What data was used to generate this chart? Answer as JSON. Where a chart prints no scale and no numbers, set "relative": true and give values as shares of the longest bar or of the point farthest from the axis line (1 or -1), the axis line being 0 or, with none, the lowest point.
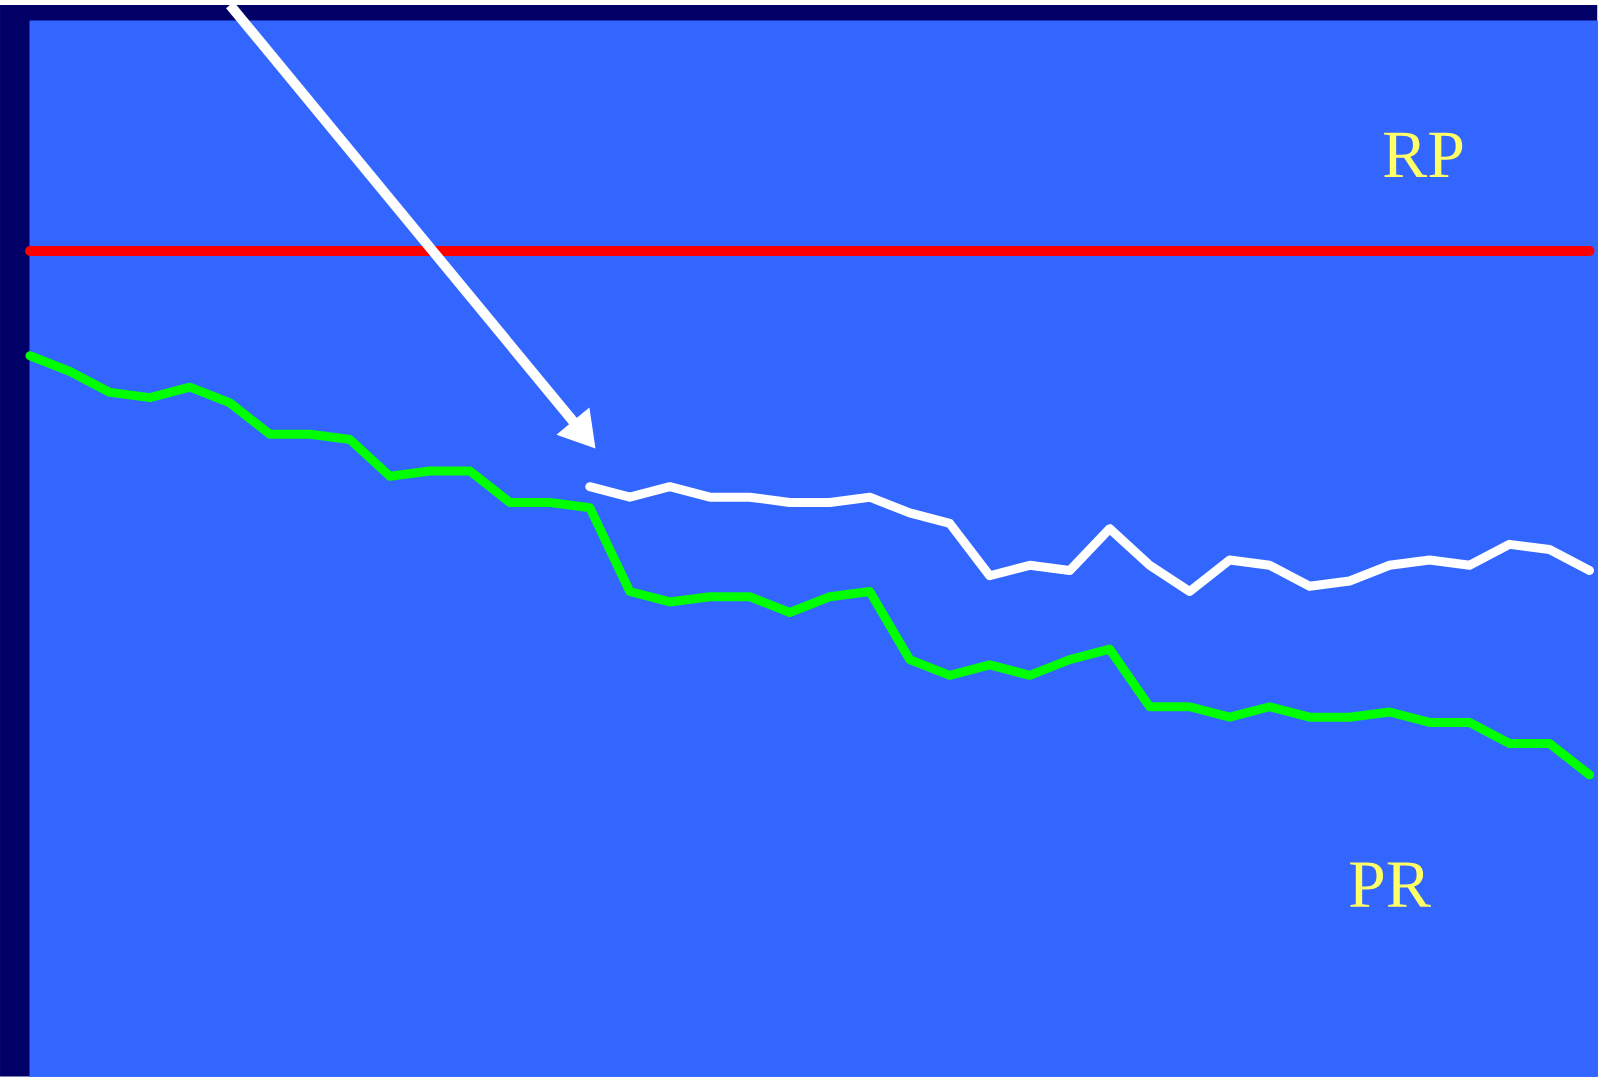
{
  "chart_data": {
    "type": "line",
    "relative": true,
    "categories": [
      null,
      null,
      null,
      null,
      null,
      null,
      null,
      null,
      null,
      null,
      null,
      null,
      null,
      null,
      null,
      null,
      null,
      null,
      null,
      null,
      null,
      null,
      null,
      null,
      null,
      null,
      null,
      null,
      null,
      null,
      null,
      null,
      null,
      null,
      null,
      null,
      null,
      null,
      null,
      null
    ],
    "series": [
      {
        "color": "#00ff00",
        "values": [
          -0.2,
          -0.23,
          -0.27,
          -0.28,
          -0.26,
          -0.29,
          -0.35,
          -0.35,
          -0.36,
          -0.43,
          -0.42,
          -0.42,
          -0.48,
          -0.48,
          -0.49,
          -0.65,
          -0.67,
          -0.66,
          -0.66,
          -0.69,
          -0.66,
          -0.65,
          -0.78,
          -0.81,
          -0.79,
          -0.81,
          -0.78,
          -0.76,
          -0.87,
          -0.87,
          -0.89,
          -0.87,
          -0.89,
          -0.89,
          -0.88,
          -0.9,
          -0.9,
          -0.94,
          -0.94,
          -1
        ]
      },
      {
        "color": "#ffffff",
        "values": [
          null,
          null,
          null,
          null,
          null,
          null,
          null,
          null,
          null,
          null,
          null,
          null,
          null,
          null,
          -0.45,
          -0.47,
          -0.45,
          -0.47,
          -0.47,
          -0.48,
          -0.48,
          -0.47,
          -0.5,
          -0.52,
          -0.62,
          -0.6,
          -0.61,
          -0.53,
          -0.6,
          -0.65,
          -0.59,
          -0.6,
          -0.64,
          -0.63,
          -0.6,
          -0.59,
          -0.6,
          -0.56,
          -0.57,
          -0.61
        ]
      }
    ],
    "ref_lines": [
      {
        "axis": "y",
        "value": 0,
        "color": "#ff0000",
        "line_style": "solid"
      }
    ],
    "annotations": [
      "RP",
      "PR"
    ],
    "line_style": "solid"
  }
}
